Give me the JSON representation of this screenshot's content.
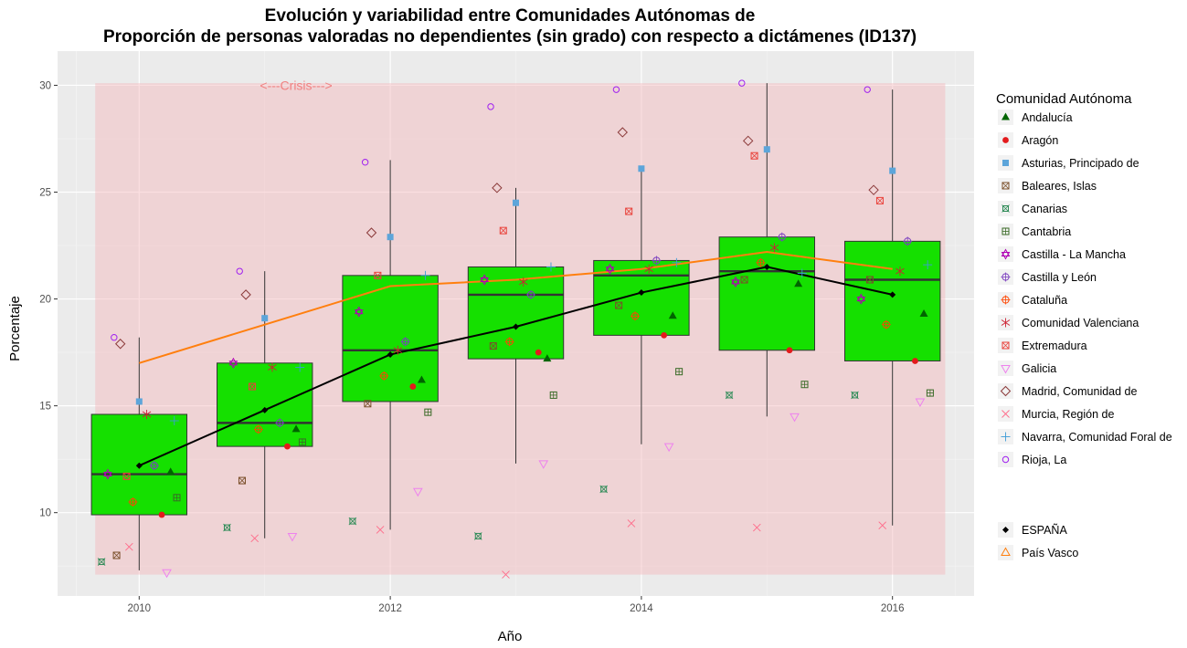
{
  "chart_data": {
    "type": "box",
    "title_line1": "Evolución y variabilidad entre Comunidades Autónomas de",
    "title_line2": "Proporción de personas valoradas no dependientes (sin grado) con respecto a dictámenes (ID137)",
    "xlabel": "Año",
    "ylabel": "Porcentaje",
    "xlim": [
      2009.35,
      2016.65
    ],
    "ylim": [
      6.1,
      31.6
    ],
    "x_ticks": [
      2010,
      2012,
      2014,
      2016
    ],
    "y_ticks": [
      10,
      15,
      20,
      25,
      30
    ],
    "grid": true,
    "years": [
      2010,
      2011,
      2012,
      2013,
      2014,
      2015,
      2016
    ],
    "crisis_band": {
      "x0": 2009.65,
      "x1": 2016.42,
      "y0": 7.1,
      "y1": 30.1,
      "color": "#f4b6bb"
    },
    "annotation": {
      "text": "<---Crisis--->",
      "x": 2011.25,
      "y": 30.0
    },
    "boxes": [
      {
        "x": 2010,
        "lower": 7.3,
        "q1": 9.9,
        "median": 11.8,
        "q3": 14.6,
        "upper": 18.2
      },
      {
        "x": 2011,
        "lower": 8.8,
        "q1": 13.1,
        "median": 14.2,
        "q3": 17.0,
        "upper": 21.3
      },
      {
        "x": 2012,
        "lower": 9.2,
        "q1": 15.2,
        "median": 17.6,
        "q3": 21.1,
        "upper": 26.5
      },
      {
        "x": 2013,
        "lower": 12.3,
        "q1": 17.2,
        "median": 20.2,
        "q3": 21.5,
        "upper": 25.2
      },
      {
        "x": 2014,
        "lower": 13.2,
        "q1": 18.3,
        "median": 21.1,
        "q3": 21.8,
        "upper": 26.1
      },
      {
        "x": 2015,
        "lower": 14.5,
        "q1": 17.6,
        "median": 21.3,
        "q3": 22.9,
        "upper": 30.1
      },
      {
        "x": 2016,
        "lower": 9.4,
        "q1": 17.1,
        "median": 20.9,
        "q3": 22.7,
        "upper": 29.8
      }
    ],
    "box_fill": "#15e000",
    "espana": {
      "name": "ESPAÑA",
      "color": "#000000",
      "values": [
        12.2,
        14.8,
        17.4,
        18.7,
        20.3,
        21.5,
        20.2
      ]
    },
    "pais_vasco": {
      "name": "País Vasco",
      "color": "#ff7f0e",
      "values": [
        17.0,
        18.8,
        20.6,
        20.9,
        21.4,
        22.2,
        21.4
      ]
    },
    "legend_title": "Comunidad Autónoma",
    "legend_placement": "right",
    "series": [
      {
        "name": "Andalucía",
        "shape": "triangle",
        "color": "#006400",
        "offset": 0.25,
        "values": [
          11.9,
          13.9,
          16.2,
          17.2,
          19.2,
          20.7,
          19.3
        ]
      },
      {
        "name": "Aragón",
        "shape": "dot",
        "color": "#e31a1c",
        "offset": 0.18,
        "values": [
          9.9,
          13.1,
          15.9,
          17.5,
          18.3,
          17.6,
          17.1
        ]
      },
      {
        "name": "Asturias, Principado de",
        "shape": "square",
        "color": "#5da5da",
        "offset": 0.0,
        "values": [
          15.2,
          19.1,
          22.9,
          24.5,
          26.1,
          27.0,
          26.0
        ]
      },
      {
        "name": "Baleares, Islas",
        "shape": "squarex",
        "color": "#7a4f2a",
        "offset": -0.18,
        "values": [
          8.0,
          11.5,
          15.1,
          17.8,
          19.7,
          20.9,
          20.9
        ]
      },
      {
        "name": "Canarias",
        "shape": "xsquare",
        "color": "#2e8b57",
        "offset": -0.3,
        "values": [
          7.7,
          9.3,
          9.6,
          8.9,
          11.1,
          15.5,
          15.5
        ]
      },
      {
        "name": "Cantabria",
        "shape": "squareplus",
        "color": "#3a6b27",
        "offset": 0.3,
        "values": [
          10.7,
          13.3,
          14.7,
          15.5,
          16.6,
          16.0,
          15.6
        ]
      },
      {
        "name": "Castilla - La Mancha",
        "shape": "star6",
        "color": "#b000b5",
        "offset": -0.25,
        "values": [
          11.8,
          17.0,
          19.4,
          20.9,
          21.4,
          20.8,
          20.0
        ]
      },
      {
        "name": "Castilla y León",
        "shape": "circleplus",
        "color": "#7b3fbf",
        "offset": 0.12,
        "values": [
          12.2,
          14.2,
          18.0,
          20.2,
          21.8,
          22.9,
          22.7
        ]
      },
      {
        "name": "Cataluña",
        "shape": "circleplus",
        "color": "#ff4500",
        "offset": -0.05,
        "values": [
          10.5,
          13.9,
          16.4,
          18.0,
          19.2,
          21.7,
          18.8
        ]
      },
      {
        "name": "Comunidad Valenciana",
        "shape": "asterisk",
        "color": "#cc2233",
        "offset": 0.06,
        "values": [
          14.6,
          16.8,
          17.6,
          20.8,
          21.4,
          22.4,
          21.3
        ]
      },
      {
        "name": "Extremadura",
        "shape": "squarex",
        "color": "#e9423b",
        "offset": -0.1,
        "values": [
          11.7,
          15.9,
          21.1,
          23.2,
          24.1,
          26.7,
          24.6
        ]
      },
      {
        "name": "Galicia",
        "shape": "triangledown",
        "color": "#ee82ee",
        "offset": 0.22,
        "values": [
          7.2,
          8.9,
          11.0,
          12.3,
          13.1,
          14.5,
          15.2
        ]
      },
      {
        "name": "Madrid, Comunidad de",
        "shape": "diamond",
        "color": "#8b3a3a",
        "offset": -0.15,
        "values": [
          17.9,
          20.2,
          23.1,
          25.2,
          27.8,
          27.4,
          25.1
        ]
      },
      {
        "name": "Murcia, Región de",
        "shape": "cross",
        "color": "#ff6b8a",
        "offset": -0.08,
        "values": [
          8.4,
          8.8,
          9.2,
          7.1,
          9.5,
          9.3,
          9.4
        ]
      },
      {
        "name": "Navarra, Comunidad Foral de",
        "shape": "plus",
        "color": "#3c9bd6",
        "offset": 0.28,
        "values": [
          14.3,
          16.8,
          21.1,
          21.5,
          21.7,
          21.2,
          21.6
        ]
      },
      {
        "name": "Rioja, La",
        "shape": "circle",
        "color": "#a020f0",
        "offset": -0.2,
        "values": [
          18.2,
          21.3,
          26.4,
          29.0,
          29.8,
          30.1,
          29.8
        ]
      }
    ]
  }
}
